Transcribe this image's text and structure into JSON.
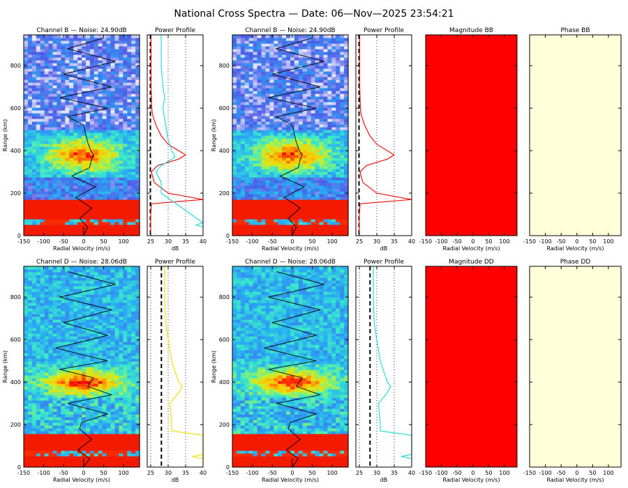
{
  "title": "National Cross Spectra — Date: 06—Nov—2025 23:54:21",
  "colors": {
    "background": "#ffffff",
    "magnitude_fill": "#ff0000",
    "phase_fill": "#ffffd9",
    "profile_red": "#ee1111",
    "profile_cyan": "#22dddd",
    "profile_yellow": "#f5e300",
    "trace": "#000000"
  },
  "chart_data": [
    {
      "id": "spec-b-1",
      "type": "heatmap",
      "title": "Channel B — Noise: 24.90dB",
      "xlabel": "Radial Velocity (m/s)",
      "ylabel": "Range (km)",
      "xlim": [
        -150,
        140
      ],
      "ylim": [
        0,
        945
      ],
      "xticks": [
        -150,
        -100,
        -50,
        0,
        50,
        100
      ],
      "yticks": [
        0,
        200,
        400,
        600,
        800
      ],
      "noise_db": 24.9,
      "bands": [
        {
          "from": 0,
          "to": 170,
          "level": "saturated"
        },
        {
          "from": 170,
          "to": 280,
          "level": "low"
        },
        {
          "from": 280,
          "to": 500,
          "level": "echo",
          "peak_range": 380
        },
        {
          "from": 500,
          "to": 945,
          "level": "noise"
        }
      ],
      "doppler_trace_ranges": [
        0,
        40,
        80,
        130,
        180,
        230,
        280,
        320,
        360,
        380,
        400,
        440,
        480,
        520,
        560,
        600,
        650,
        700,
        760,
        820,
        880,
        930
      ],
      "doppler_trace_velocities": [
        0,
        10,
        -10,
        20,
        -20,
        30,
        -30,
        15,
        20,
        25,
        18,
        10,
        5,
        0,
        -40,
        60,
        -60,
        70,
        -50,
        80,
        -40,
        50
      ]
    },
    {
      "id": "prof-b-1",
      "type": "line",
      "title": "Power Profile",
      "xlabel": "dB",
      "xlim": [
        24,
        40
      ],
      "ylim": [
        0,
        945
      ],
      "xticks": [
        25,
        30,
        35,
        40
      ],
      "noise_line_db": 24.9,
      "series": [
        {
          "name": "power",
          "color": "#ee1111",
          "y": [
            0,
            50,
            100,
            150,
            170,
            200,
            250,
            300,
            330,
            360,
            380,
            400,
            430,
            470,
            520,
            570,
            600,
            650,
            700,
            800,
            900,
            945
          ],
          "x": [
            25,
            25,
            25,
            25.2,
            40,
            30,
            26,
            25.2,
            27,
            33,
            35,
            33,
            30,
            28,
            26.5,
            25.5,
            25.3,
            25.2,
            25.1,
            25.1,
            25.1,
            25.1
          ]
        },
        {
          "name": "cross",
          "color": "#22dddd",
          "y": [
            40,
            50,
            60,
            200,
            250,
            300,
            330,
            370,
            400,
            450,
            500,
            550,
            600,
            650,
            700,
            800,
            900,
            945
          ],
          "x": [
            40,
            38,
            40,
            28,
            28,
            26.5,
            28,
            32,
            31,
            30,
            29.5,
            29,
            28.5,
            29,
            28.5,
            28,
            28,
            28
          ]
        }
      ]
    },
    {
      "id": "spec-b-2",
      "type": "heatmap",
      "title": "Channel B — Noise: 24.90dB",
      "xlabel": "Radial Velocity (m/s)",
      "ylabel": "Range (km)",
      "xlim": [
        -150,
        140
      ],
      "ylim": [
        0,
        945
      ],
      "xticks": [
        -150,
        -100,
        -50,
        0,
        50,
        100
      ],
      "yticks": [
        0,
        200,
        400,
        600,
        800
      ],
      "noise_db": 24.9,
      "bands": [
        {
          "from": 0,
          "to": 170,
          "level": "saturated"
        },
        {
          "from": 170,
          "to": 280,
          "level": "low"
        },
        {
          "from": 280,
          "to": 500,
          "level": "echo",
          "peak_range": 380
        },
        {
          "from": 500,
          "to": 945,
          "level": "noise"
        }
      ],
      "doppler_trace_ranges": [
        0,
        40,
        80,
        130,
        180,
        230,
        280,
        320,
        360,
        380,
        400,
        440,
        480,
        520,
        560,
        600,
        650,
        700,
        760,
        820,
        880,
        930
      ],
      "doppler_trace_velocities": [
        0,
        10,
        -10,
        20,
        -20,
        30,
        -30,
        15,
        20,
        25,
        18,
        10,
        5,
        0,
        -40,
        60,
        -60,
        70,
        -50,
        80,
        -40,
        50
      ]
    },
    {
      "id": "prof-b-2",
      "type": "line",
      "title": "Power Profile",
      "xlabel": "dB",
      "xlim": [
        24,
        40
      ],
      "ylim": [
        0,
        945
      ],
      "xticks": [
        25,
        30,
        35,
        40
      ],
      "noise_line_db": 24.9,
      "series": [
        {
          "name": "power",
          "color": "#ee1111",
          "y": [
            0,
            50,
            100,
            150,
            170,
            200,
            250,
            300,
            330,
            360,
            380,
            400,
            430,
            470,
            520,
            570,
            600,
            650,
            700,
            800,
            900,
            945
          ],
          "x": [
            25,
            25,
            25,
            25.2,
            40,
            30,
            26,
            25.2,
            27,
            33,
            35,
            33,
            30,
            28,
            26.5,
            25.5,
            25.3,
            25.2,
            25.1,
            25.1,
            25.1,
            25.1
          ]
        }
      ]
    },
    {
      "id": "mag-bb",
      "type": "heatmap",
      "title": "Magnitude BB",
      "xlabel": "Radial Velocity (m/s)",
      "xlim": [
        -150,
        140
      ],
      "ylim": [
        0,
        945
      ],
      "xticks": [
        -150,
        -100,
        -50,
        0,
        50,
        100
      ],
      "fill": "#ff0000"
    },
    {
      "id": "phase-bb",
      "type": "heatmap",
      "title": "Phase BB",
      "xlabel": "Radial Velocity (m/s)",
      "xlim": [
        -150,
        140
      ],
      "ylim": [
        0,
        945
      ],
      "xticks": [
        -150,
        -100,
        -50,
        0,
        50,
        100
      ],
      "fill": "#ffffd9"
    },
    {
      "id": "spec-d-1",
      "type": "heatmap",
      "title": "Channel D — Noise: 28.06dB",
      "xlabel": "Radial Velocity (m/s)",
      "ylabel": "Range (km)",
      "xlim": [
        -150,
        140
      ],
      "ylim": [
        0,
        945
      ],
      "xticks": [
        -150,
        -100,
        -50,
        0,
        50,
        100
      ],
      "yticks": [
        0,
        200,
        400,
        600,
        800
      ],
      "noise_db": 28.06,
      "bands": [
        {
          "from": 0,
          "to": 160,
          "level": "saturated"
        },
        {
          "from": 160,
          "to": 330,
          "level": "low"
        },
        {
          "from": 330,
          "to": 500,
          "level": "echo",
          "peak_range": 400
        },
        {
          "from": 500,
          "to": 945,
          "level": "noise"
        }
      ],
      "doppler_trace_ranges": [
        0,
        40,
        80,
        130,
        180,
        210,
        250,
        300,
        340,
        380,
        420,
        460,
        500,
        560,
        620,
        680,
        740,
        800,
        860,
        920
      ],
      "doppler_trace_velocities": [
        0,
        15,
        -15,
        20,
        -10,
        -5,
        60,
        -40,
        70,
        10,
        25,
        -60,
        60,
        -70,
        60,
        -50,
        70,
        -60,
        80,
        -40
      ]
    },
    {
      "id": "prof-d-1",
      "type": "line",
      "title": "Power Profile",
      "xlabel": "dB",
      "xlim": [
        24,
        40
      ],
      "ylim": [
        0,
        945
      ],
      "xticks": [
        25,
        30,
        35,
        40
      ],
      "noise_line_db": 28.06,
      "series": [
        {
          "name": "power",
          "color": "#f5e300",
          "y": [
            40,
            50,
            60,
            150,
            170,
            200,
            300,
            350,
            380,
            400,
            450,
            500,
            550,
            600,
            650,
            700,
            800,
            945
          ],
          "x": [
            40,
            37,
            40,
            40,
            31,
            31,
            30.5,
            33,
            34,
            33,
            32,
            31,
            30.5,
            30,
            29.5,
            29.2,
            29,
            29
          ]
        }
      ]
    },
    {
      "id": "spec-d-2",
      "type": "heatmap",
      "title": "Channel D — Noise: 28.06dB",
      "xlabel": "Radial Velocity (m/s)",
      "ylabel": "Range (km)",
      "xlim": [
        -150,
        140
      ],
      "ylim": [
        0,
        945
      ],
      "xticks": [
        -150,
        -100,
        -50,
        0,
        50,
        100
      ],
      "yticks": [
        0,
        200,
        400,
        600,
        800
      ],
      "noise_db": 28.06,
      "bands": [
        {
          "from": 0,
          "to": 160,
          "level": "saturated"
        },
        {
          "from": 160,
          "to": 330,
          "level": "low"
        },
        {
          "from": 330,
          "to": 500,
          "level": "echo",
          "peak_range": 400
        },
        {
          "from": 500,
          "to": 945,
          "level": "noise"
        }
      ],
      "doppler_trace_ranges": [
        0,
        40,
        80,
        130,
        180,
        210,
        250,
        300,
        340,
        380,
        420,
        460,
        500,
        560,
        620,
        680,
        740,
        800,
        860,
        920
      ],
      "doppler_trace_velocities": [
        0,
        15,
        -15,
        20,
        -10,
        -5,
        60,
        -40,
        70,
        10,
        25,
        -60,
        60,
        -70,
        60,
        -50,
        70,
        -60,
        80,
        -40
      ]
    },
    {
      "id": "prof-d-2",
      "type": "line",
      "title": "Power Profile",
      "xlabel": "dB",
      "xlim": [
        24,
        40
      ],
      "ylim": [
        0,
        945
      ],
      "xticks": [
        25,
        30,
        35,
        40
      ],
      "noise_line_db": 28.06,
      "series": [
        {
          "name": "power",
          "color": "#22dddd",
          "y": [
            40,
            50,
            60,
            150,
            170,
            200,
            300,
            350,
            380,
            400,
            450,
            500,
            550,
            600,
            650,
            700,
            800,
            945
          ],
          "x": [
            40,
            37,
            40,
            40,
            31,
            31,
            30.5,
            33,
            34,
            33,
            32,
            31,
            30.5,
            30,
            29.5,
            29.2,
            29,
            29
          ]
        }
      ]
    },
    {
      "id": "mag-dd",
      "type": "heatmap",
      "title": "Magnitude DD",
      "xlabel": "Radial Velocity (m/s)",
      "xlim": [
        -150,
        140
      ],
      "ylim": [
        0,
        945
      ],
      "xticks": [
        -150,
        -100,
        -50,
        0,
        50,
        100
      ],
      "fill": "#ff0000"
    },
    {
      "id": "phase-dd",
      "type": "heatmap",
      "title": "Phase DD",
      "xlabel": "Radial Velocity (m/s)",
      "xlim": [
        -150,
        140
      ],
      "ylim": [
        0,
        945
      ],
      "xticks": [
        -150,
        -100,
        -50,
        0,
        50,
        100
      ],
      "fill": "#ffffd9"
    }
  ]
}
